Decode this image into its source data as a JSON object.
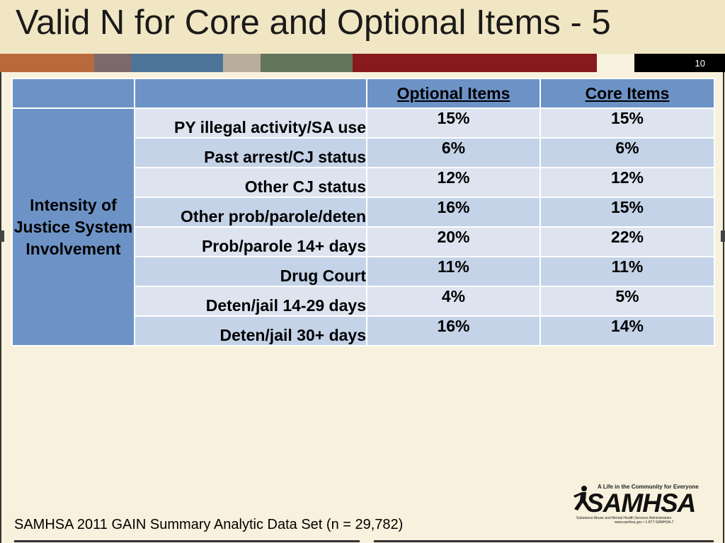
{
  "slide": {
    "title": "Valid N for Core and Optional Items - 5",
    "number": "10"
  },
  "stripe_colors": [
    "#b96a3c",
    "#7b6a6c",
    "#4d7398",
    "#b9ae9b",
    "#62755a",
    "#861a1d",
    "#f7f1dd"
  ],
  "table": {
    "headers": [
      "",
      "",
      "Optional Items",
      "Core Items"
    ],
    "group_label": "Intensity of Justice System Involvement",
    "rows": [
      {
        "label": "PY illegal activity/SA use",
        "optional": "15%",
        "core": "15%"
      },
      {
        "label": "Past arrest/CJ status",
        "optional": "6%",
        "core": "6%"
      },
      {
        "label": "Other CJ status",
        "optional": "12%",
        "core": "12%"
      },
      {
        "label": "Other prob/parole/deten",
        "optional": "16%",
        "core": "15%"
      },
      {
        "label": "Prob/parole 14+ days",
        "optional": "20%",
        "core": "22%"
      },
      {
        "label": "Drug Court",
        "optional": "11%",
        "core": "11%"
      },
      {
        "label": "Deten/jail 14-29 days",
        "optional": "4%",
        "core": "5%"
      },
      {
        "label": "Deten/jail 30+ days",
        "optional": "16%",
        "core": "14%"
      }
    ]
  },
  "logo": {
    "tagline": "A Life in the Community for Everyone",
    "wordmark": "SAMHSA",
    "subtitle": "Substance Abuse and Mental Health Services Administration",
    "contact": "www.samhsa.gov • 1-877-SAMHSA-7"
  },
  "footer": {
    "source": "SAMHSA 2011 GAIN Summary Analytic Data Set (n = 29,782)"
  }
}
